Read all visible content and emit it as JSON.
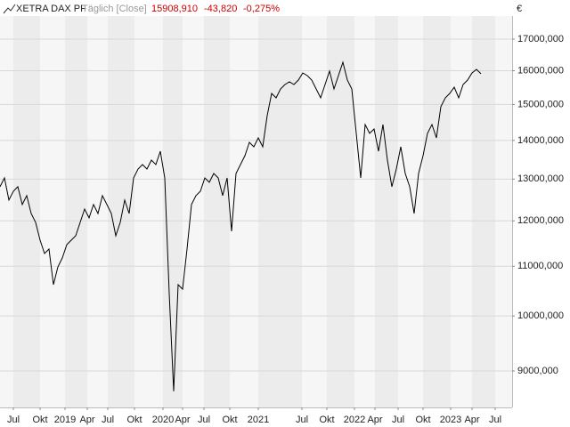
{
  "chart_data": {
    "type": "line",
    "title": "XETRA DAX PF",
    "interval": "Täglich [Close]",
    "last": "15908,910",
    "change": "-43,820",
    "change_pct": "-0,275%",
    "currency": "€",
    "color": "#000000",
    "log_scale": true,
    "grid": true,
    "values": [
      12810,
      13029,
      12487,
      12701,
      12810,
      12381,
      12594,
      12170,
      11965,
      11563,
      11271,
      11368,
      10618,
      10987,
      11178,
      11465,
      11563,
      11662,
      11965,
      12274,
      12068,
      12381,
      12170,
      12594,
      12381,
      12170,
      11662,
      11965,
      12487,
      12170,
      13029,
      13253,
      13367,
      13253,
      13481,
      13367,
      13714,
      13029,
      10440,
      8655,
      10618,
      10528,
      11368,
      12381,
      12594,
      12701,
      13029,
      12920,
      13141,
      13029,
      12594,
      13029,
      11762,
      13141,
      13367,
      13597,
      13949,
      13831,
      14068,
      13831,
      14681,
      15320,
      15191,
      15451,
      15584,
      15664,
      15584,
      15718,
      15934,
      15852,
      15718,
      15451,
      15191,
      15584,
      15989,
      15451,
      15852,
      16262,
      15718,
      15451,
      14190,
      13029,
      14433,
      14190,
      14311,
      13714,
      14433,
      13481,
      12810,
      13253,
      13831,
      13141,
      12810,
      12170,
      13141,
      13597,
      14190,
      14433,
      14068,
      14935,
      15191,
      15320,
      15504,
      15191,
      15584,
      15718,
      15934,
      16043,
      15909
    ],
    "xlim": [
      0,
      115
    ],
    "xticks": [
      {
        "value": 3,
        "label": "Jul"
      },
      {
        "value": 9,
        "label": "Okt"
      },
      {
        "value": 14.6,
        "label": "2019"
      },
      {
        "value": 19.6,
        "label": "Apr"
      },
      {
        "value": 24.2,
        "label": "Jul"
      },
      {
        "value": 30.2,
        "label": "Okt"
      },
      {
        "value": 36.6,
        "label": "2020"
      },
      {
        "value": 41,
        "label": "Apr"
      },
      {
        "value": 45.8,
        "label": "Jul"
      },
      {
        "value": 51.6,
        "label": "Okt"
      },
      {
        "value": 58,
        "label": "2021"
      },
      {
        "value": 67.8,
        "label": "Jul"
      },
      {
        "value": 73.4,
        "label": "Okt"
      },
      {
        "value": 79.6,
        "label": "2022"
      },
      {
        "value": 84.2,
        "label": "Apr"
      },
      {
        "value": 89.4,
        "label": "Jul"
      },
      {
        "value": 95,
        "label": "Okt"
      },
      {
        "value": 101.2,
        "label": "2023"
      },
      {
        "value": 106,
        "label": "Apr"
      },
      {
        "value": 111.2,
        "label": "Jul"
      }
    ],
    "ylim": [
      8392,
      17770
    ],
    "yticks": [
      {
        "value": 9000,
        "label": "9000,000"
      },
      {
        "value": 10000,
        "label": "10000,000"
      },
      {
        "value": 11000,
        "label": "11000,000"
      },
      {
        "value": 12000,
        "label": "12000,000"
      },
      {
        "value": 13000,
        "label": "13000,000"
      },
      {
        "value": 14000,
        "label": "14000,000"
      },
      {
        "value": 15000,
        "label": "15000,000"
      },
      {
        "value": 16000,
        "label": "16000,000"
      },
      {
        "value": 17000,
        "label": "17000,000"
      }
    ]
  }
}
